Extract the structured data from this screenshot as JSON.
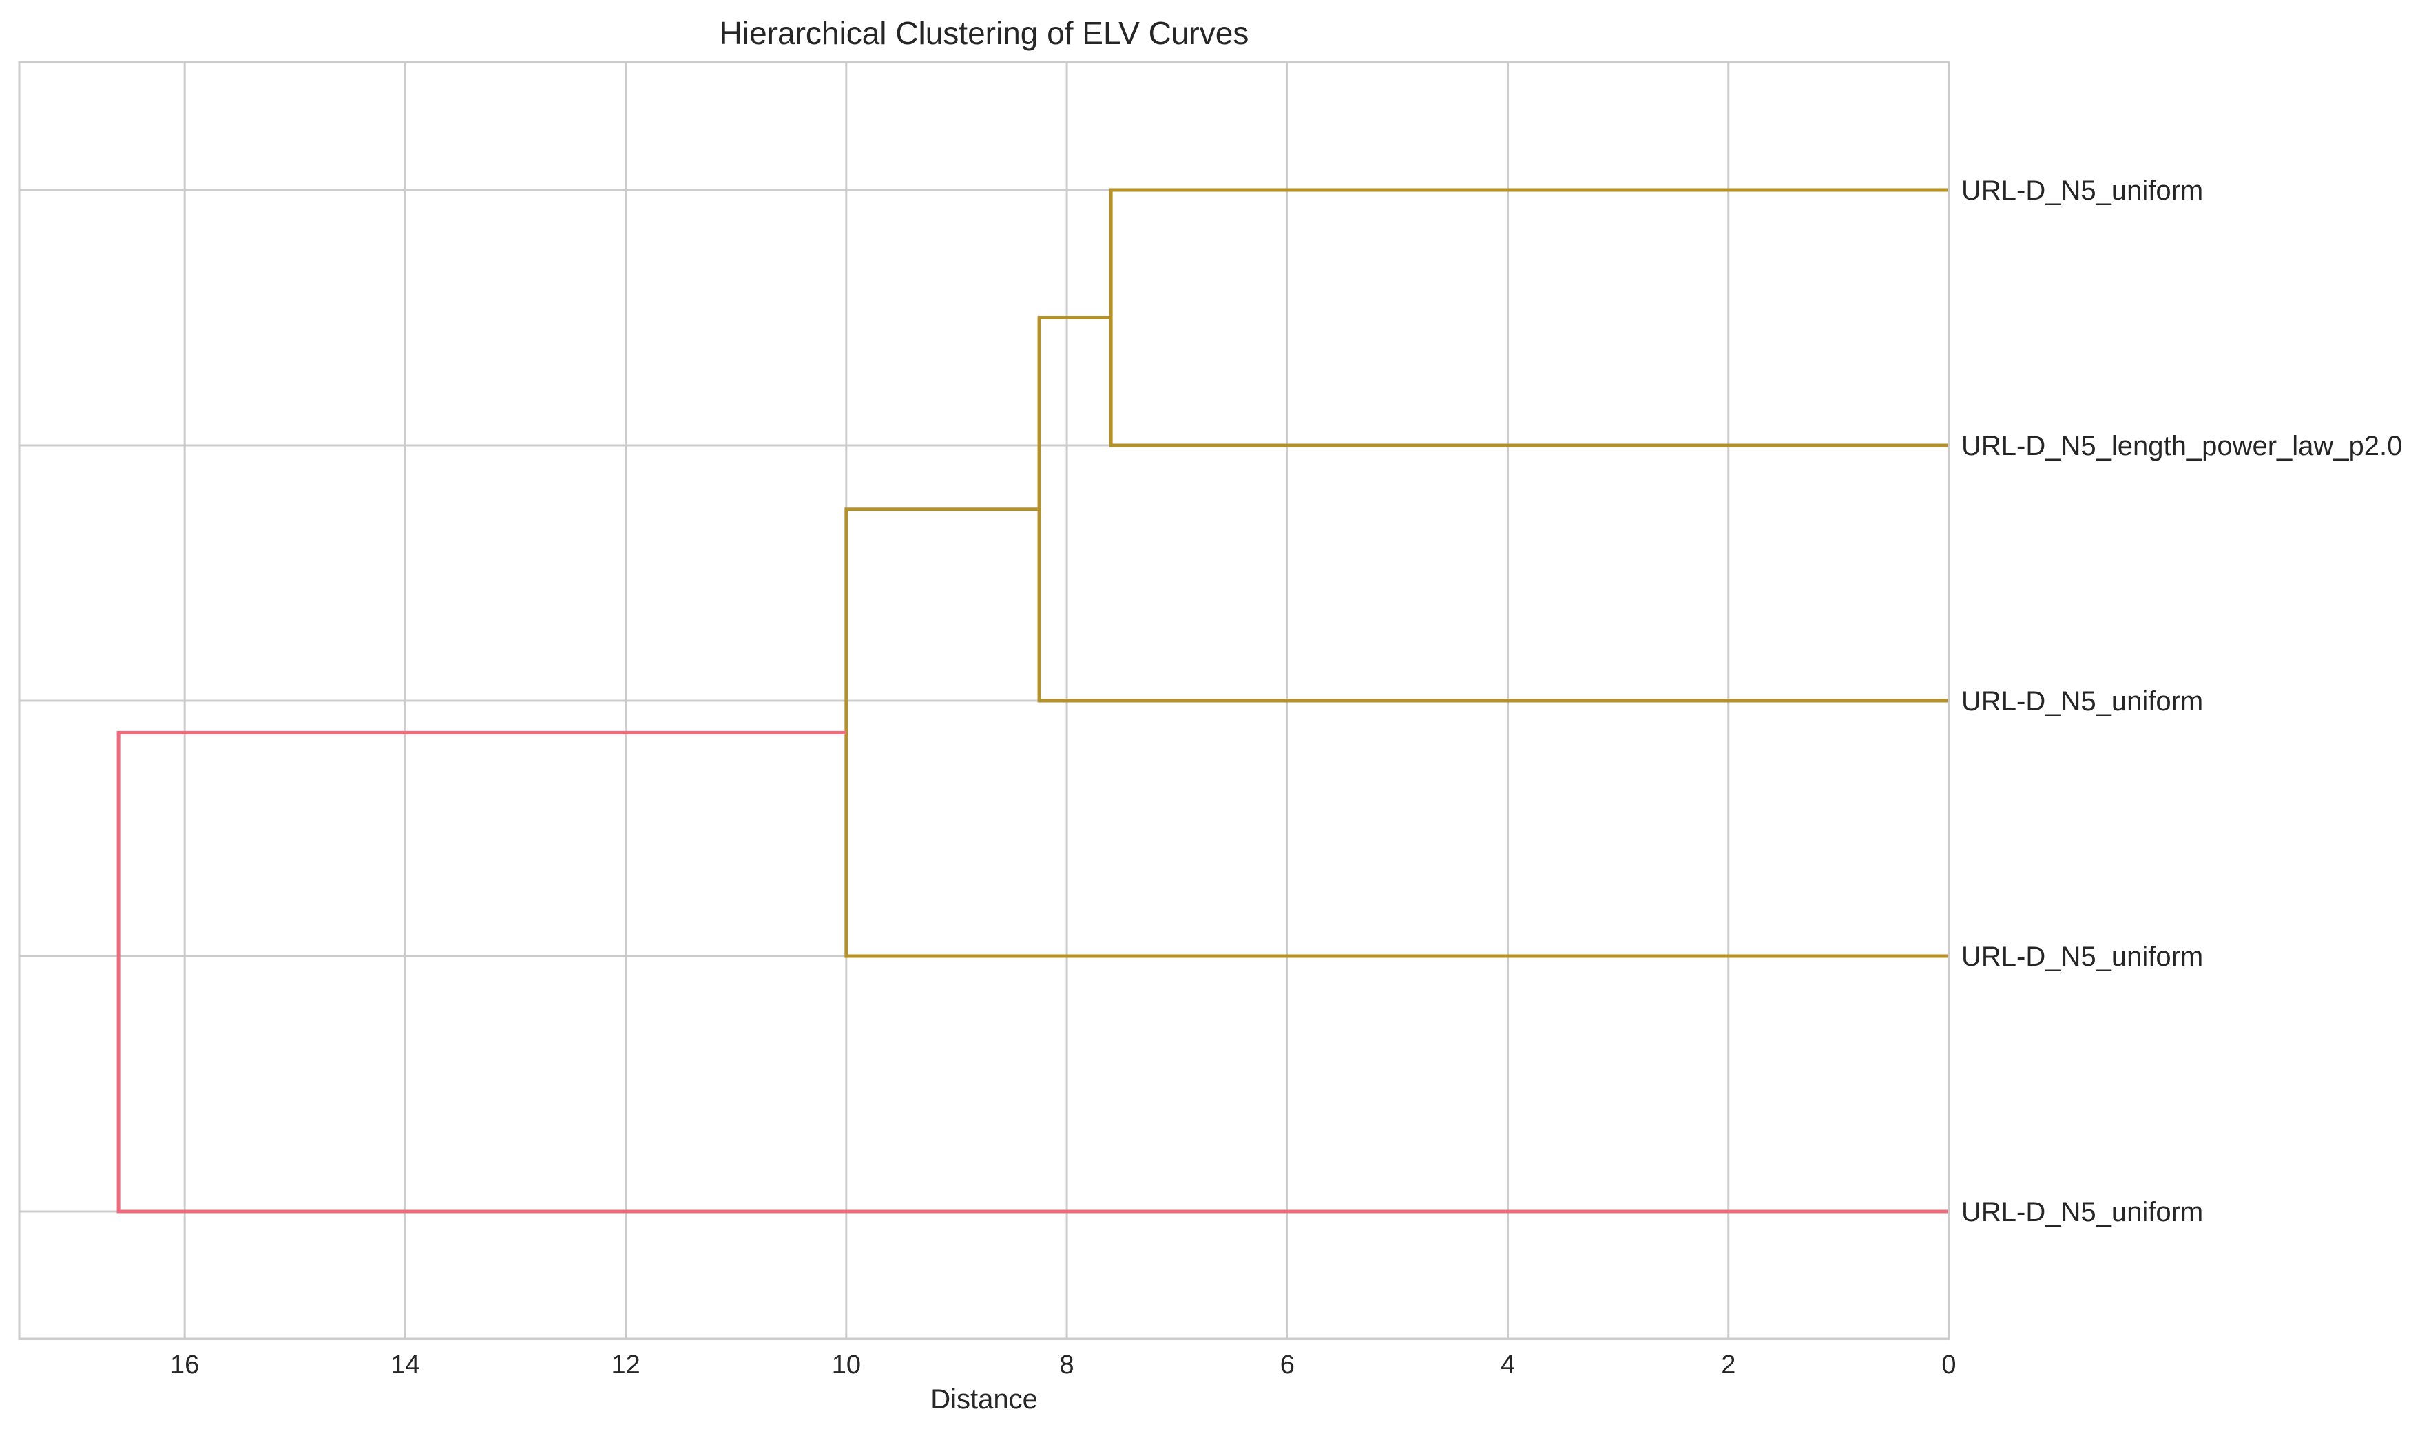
{
  "chart_data": {
    "type": "dendrogram",
    "orientation": "left",
    "title": "Hierarchical Clustering of ELV Curves",
    "xlabel": "Distance",
    "ylabel": "",
    "xlim": [
      17.5,
      0
    ],
    "x_ticks": [
      16,
      14,
      12,
      10,
      8,
      6,
      4,
      2,
      0
    ],
    "grid": true,
    "leaves": [
      "URL-D_N5_uniform",
      "URL-D_N5_length_power_law_p2.0",
      "URL-D_N5_uniform",
      "URL-D_N5_uniform",
      "URL-D_N5_uniform"
    ],
    "links": [
      {
        "left": 0,
        "right": 1,
        "distance": 7.6,
        "color": "#b5912a"
      },
      {
        "left": 5,
        "right": 2,
        "distance": 8.25,
        "color": "#b5912a"
      },
      {
        "left": 6,
        "right": 3,
        "distance": 10.0,
        "color": "#b5912a"
      },
      {
        "left": 7,
        "right": 4,
        "distance": 16.6,
        "color": "#ef6a7a"
      }
    ],
    "colors": {
      "cluster": "#b5912a",
      "root": "#ef6a7a",
      "grid": "#cccccc",
      "frame": "#cccccc"
    }
  }
}
